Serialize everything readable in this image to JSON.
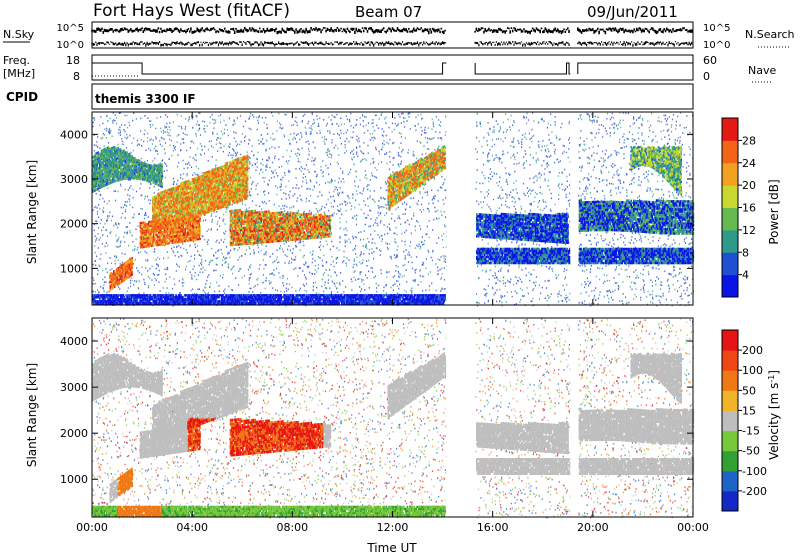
{
  "header": {
    "station": "Fort Hays West (fitACF)",
    "beam": "Beam 07",
    "date": "09/Jun/2011"
  },
  "noise_panel": {
    "left_label": "N.Sky",
    "right_label": "N.Search",
    "ticks": [
      "10^5",
      "10^0"
    ],
    "ticks_right": [
      "10^5",
      "10^0"
    ]
  },
  "freq_panel": {
    "left_label_line1": "Freq.",
    "left_label_line2": "[MHz]",
    "ticks": [
      "18",
      "8"
    ],
    "right_label": "Nave",
    "ticks_right": [
      "60",
      "0"
    ]
  },
  "cpid_panel": {
    "label": "CPID",
    "value": "themis 3300 IF"
  },
  "chart_data": [
    {
      "type": "heatmap",
      "name": "power",
      "ylabel": "Slant Range [km]",
      "xlabel": "",
      "xlim": [
        0,
        24
      ],
      "ylim": [
        180,
        4500
      ],
      "xticks": [
        "00:00",
        "04:00",
        "08:00",
        "12:00",
        "16:00",
        "20:00",
        "00:00"
      ],
      "yticks": [
        1000,
        2000,
        3000,
        4000
      ],
      "colorbar": {
        "label": "Power [dB]",
        "ticks": [
          "4",
          "8",
          "12",
          "16",
          "20",
          "24",
          "28"
        ],
        "colors": [
          "#0a14e6",
          "#1e50d2",
          "#2e9a8a",
          "#66b850",
          "#c8d830",
          "#f2a020",
          "#f26418",
          "#e61a14"
        ]
      },
      "data_gaps_ut": [
        [
          14.15,
          15.3
        ],
        [
          19.1,
          19.4
        ]
      ]
    },
    {
      "type": "heatmap",
      "name": "velocity",
      "ylabel": "Slant Range [km]",
      "xlabel": "Time UT",
      "xlim": [
        0,
        24
      ],
      "ylim": [
        180,
        4500
      ],
      "xticks": [
        "00:00",
        "04:00",
        "08:00",
        "12:00",
        "16:00",
        "20:00",
        "00:00"
      ],
      "yticks": [
        1000,
        2000,
        3000,
        4000
      ],
      "colorbar": {
        "label_main": "Velocity [m s",
        "label_exp": "-1",
        "label_end": "]",
        "ticks": [
          "200",
          "100",
          "50",
          "15",
          "-15",
          "-50",
          "-100",
          "-200"
        ],
        "colors": [
          "#1428c8",
          "#1e64c8",
          "#32a032",
          "#78c83c",
          "#bebebe",
          "#f0b428",
          "#f07814",
          "#f04614",
          "#e61414"
        ]
      },
      "data_gaps_ut": [
        [
          14.15,
          15.3
        ],
        [
          19.1,
          19.4
        ]
      ]
    }
  ]
}
